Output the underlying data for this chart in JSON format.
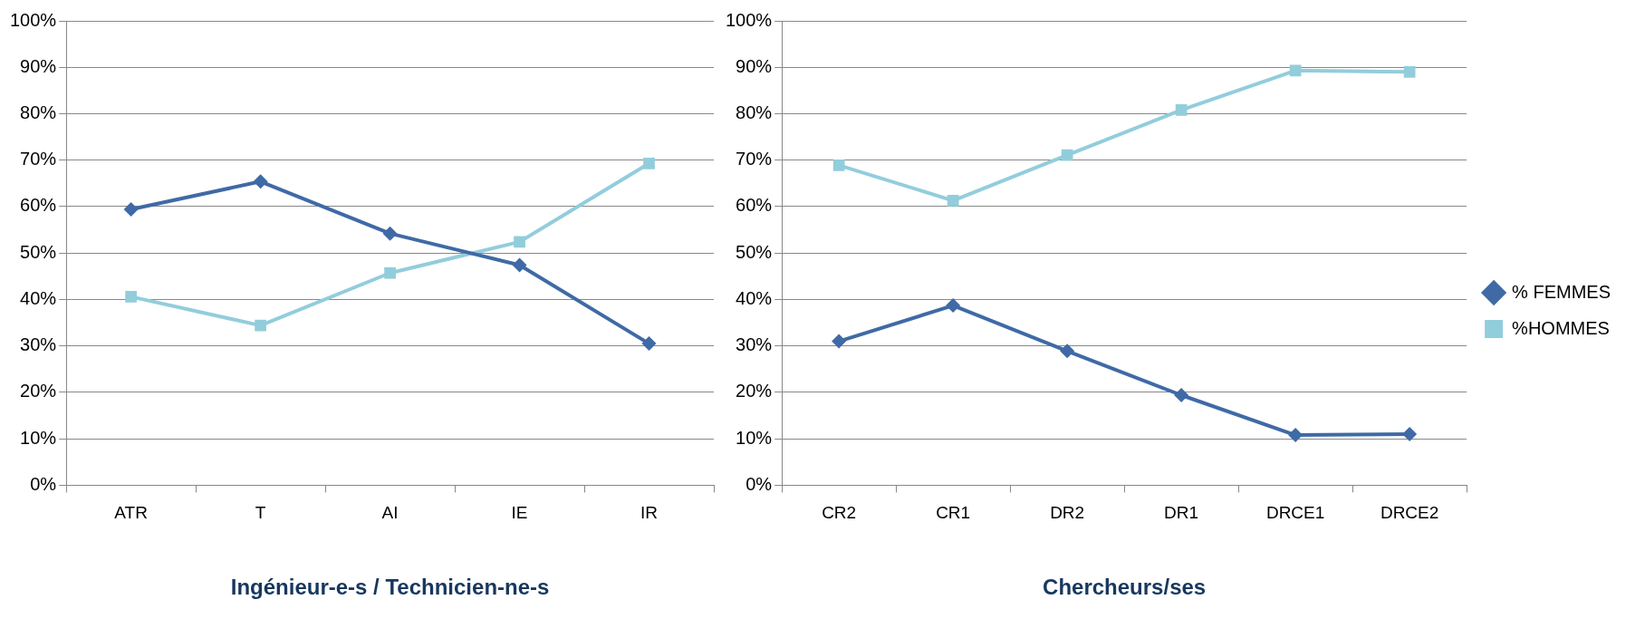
{
  "chart_data": [
    {
      "type": "line",
      "xlabel": "Ingénieur-e-s / Technicien-ne-s",
      "categories": [
        "ATR",
        "T",
        "AI",
        "IE",
        "IR"
      ],
      "series": [
        {
          "color": "#3f6aa6",
          "marker": "diamond",
          "values": [
            59.4,
            65.4,
            54.2,
            47.4,
            30.5
          ]
        },
        {
          "color": "#92cddc",
          "marker": "square",
          "values": [
            40.6,
            34.4,
            45.7,
            52.4,
            69.3
          ]
        }
      ],
      "ylim": [
        0,
        100
      ],
      "yticks": [
        {
          "value": 0,
          "label": "0%"
        },
        {
          "value": 10,
          "label": "10%"
        },
        {
          "value": 20,
          "label": "20%"
        },
        {
          "value": 30,
          "label": "30%"
        },
        {
          "value": 40,
          "label": "40%"
        },
        {
          "value": 50,
          "label": "50%"
        },
        {
          "value": 60,
          "label": "60%"
        },
        {
          "value": 70,
          "label": "70%"
        },
        {
          "value": 80,
          "label": "80%"
        },
        {
          "value": 90,
          "label": "90%"
        },
        {
          "value": 100,
          "label": "100%"
        }
      ],
      "grid": "y",
      "legend": false
    },
    {
      "type": "line",
      "xlabel": "Chercheurs/ses",
      "categories": [
        "CR2",
        "CR1",
        "DR2",
        "DR1",
        "DRCE1",
        "DRCE2"
      ],
      "series": [
        {
          "name": "% FEMMES",
          "color": "#3f6aa6",
          "marker": "diamond",
          "values": [
            31.0,
            38.7,
            28.9,
            19.4,
            10.8,
            11.0
          ]
        },
        {
          "name": "%HOMMES",
          "color": "#92cddc",
          "marker": "square",
          "values": [
            68.9,
            61.3,
            71.1,
            80.8,
            89.3,
            89.0
          ]
        }
      ],
      "ylim": [
        0,
        100
      ],
      "yticks": [
        {
          "value": 0,
          "label": "0%"
        },
        {
          "value": 10,
          "label": "10%"
        },
        {
          "value": 20,
          "label": "20%"
        },
        {
          "value": 30,
          "label": "30%"
        },
        {
          "value": 40,
          "label": "40%"
        },
        {
          "value": 50,
          "label": "50%"
        },
        {
          "value": 60,
          "label": "60%"
        },
        {
          "value": 70,
          "label": "70%"
        },
        {
          "value": 80,
          "label": "80%"
        },
        {
          "value": 90,
          "label": "90%"
        },
        {
          "value": 100,
          "label": "100%"
        }
      ],
      "grid": "y",
      "legend": "right"
    }
  ]
}
